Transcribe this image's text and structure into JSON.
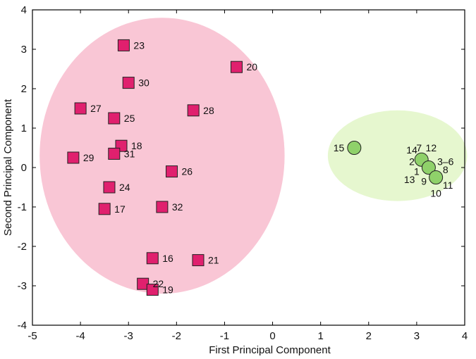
{
  "chart_data": {
    "type": "scatter",
    "title": "",
    "xlabel": "First Principal Component",
    "ylabel": "Second Principal Component",
    "xlim": [
      -5,
      4
    ],
    "ylim": [
      -4,
      4
    ],
    "xticks": [
      -5,
      -4,
      -3,
      -2,
      -1,
      0,
      1,
      2,
      3,
      4
    ],
    "yticks": [
      -4,
      -3,
      -2,
      -1,
      0,
      1,
      2,
      3,
      4
    ],
    "grid": false,
    "colors": {
      "group_a_marker": "#e0206e",
      "group_a_region": "#f9c6d5",
      "group_b_marker": "#8fd16a",
      "group_b_region": "#e6f7cf"
    },
    "groups": [
      {
        "marker": "square",
        "region": {
          "cx": -2.3,
          "cy": 0.3,
          "rx": 2.55,
          "ry": 3.5
        },
        "points": [
          {
            "label": "23",
            "x": -3.1,
            "y": 3.1
          },
          {
            "label": "20",
            "x": -0.75,
            "y": 2.55
          },
          {
            "label": "30",
            "x": -3.0,
            "y": 2.15
          },
          {
            "label": "27",
            "x": -4.0,
            "y": 1.5
          },
          {
            "label": "28",
            "x": -1.65,
            "y": 1.45
          },
          {
            "label": "25",
            "x": -3.3,
            "y": 1.25
          },
          {
            "label": "18",
            "x": -3.15,
            "y": 0.55
          },
          {
            "label": "31",
            "x": -3.3,
            "y": 0.35
          },
          {
            "label": "29",
            "x": -4.15,
            "y": 0.25
          },
          {
            "label": "26",
            "x": -2.1,
            "y": -0.1
          },
          {
            "label": "24",
            "x": -3.4,
            "y": -0.5
          },
          {
            "label": "17",
            "x": -3.5,
            "y": -1.05
          },
          {
            "label": "32",
            "x": -2.3,
            "y": -1.0
          },
          {
            "label": "16",
            "x": -2.5,
            "y": -2.3
          },
          {
            "label": "21",
            "x": -1.55,
            "y": -2.35
          },
          {
            "label": "22",
            "x": -2.7,
            "y": -2.95
          },
          {
            "label": "19",
            "x": -2.5,
            "y": -3.1
          }
        ]
      },
      {
        "marker": "circle",
        "region": {
          "cx": 2.6,
          "cy": 0.3,
          "rx": 1.45,
          "ry": 1.15
        },
        "points": [
          {
            "label": "15",
            "x": 1.7,
            "y": 0.5
          },
          {
            "label": "",
            "x": 3.1,
            "y": 0.2
          },
          {
            "label": "",
            "x": 3.25,
            "y": 0.0
          },
          {
            "label": "",
            "x": 3.4,
            "y": -0.25
          }
        ],
        "annotations": [
          {
            "text": "14",
            "x": 2.9,
            "y": 0.45
          },
          {
            "text": "7",
            "x": 3.05,
            "y": 0.5
          },
          {
            "text": "12",
            "x": 3.3,
            "y": 0.5
          },
          {
            "text": "2",
            "x": 2.9,
            "y": 0.15
          },
          {
            "text": "3–6",
            "x": 3.6,
            "y": 0.15
          },
          {
            "text": "1",
            "x": 3.0,
            "y": -0.1
          },
          {
            "text": "8",
            "x": 3.6,
            "y": -0.05
          },
          {
            "text": "13",
            "x": 2.85,
            "y": -0.3
          },
          {
            "text": "9",
            "x": 3.15,
            "y": -0.35
          },
          {
            "text": "11",
            "x": 3.65,
            "y": -0.45
          },
          {
            "text": "10",
            "x": 3.4,
            "y": -0.65
          }
        ]
      }
    ]
  }
}
